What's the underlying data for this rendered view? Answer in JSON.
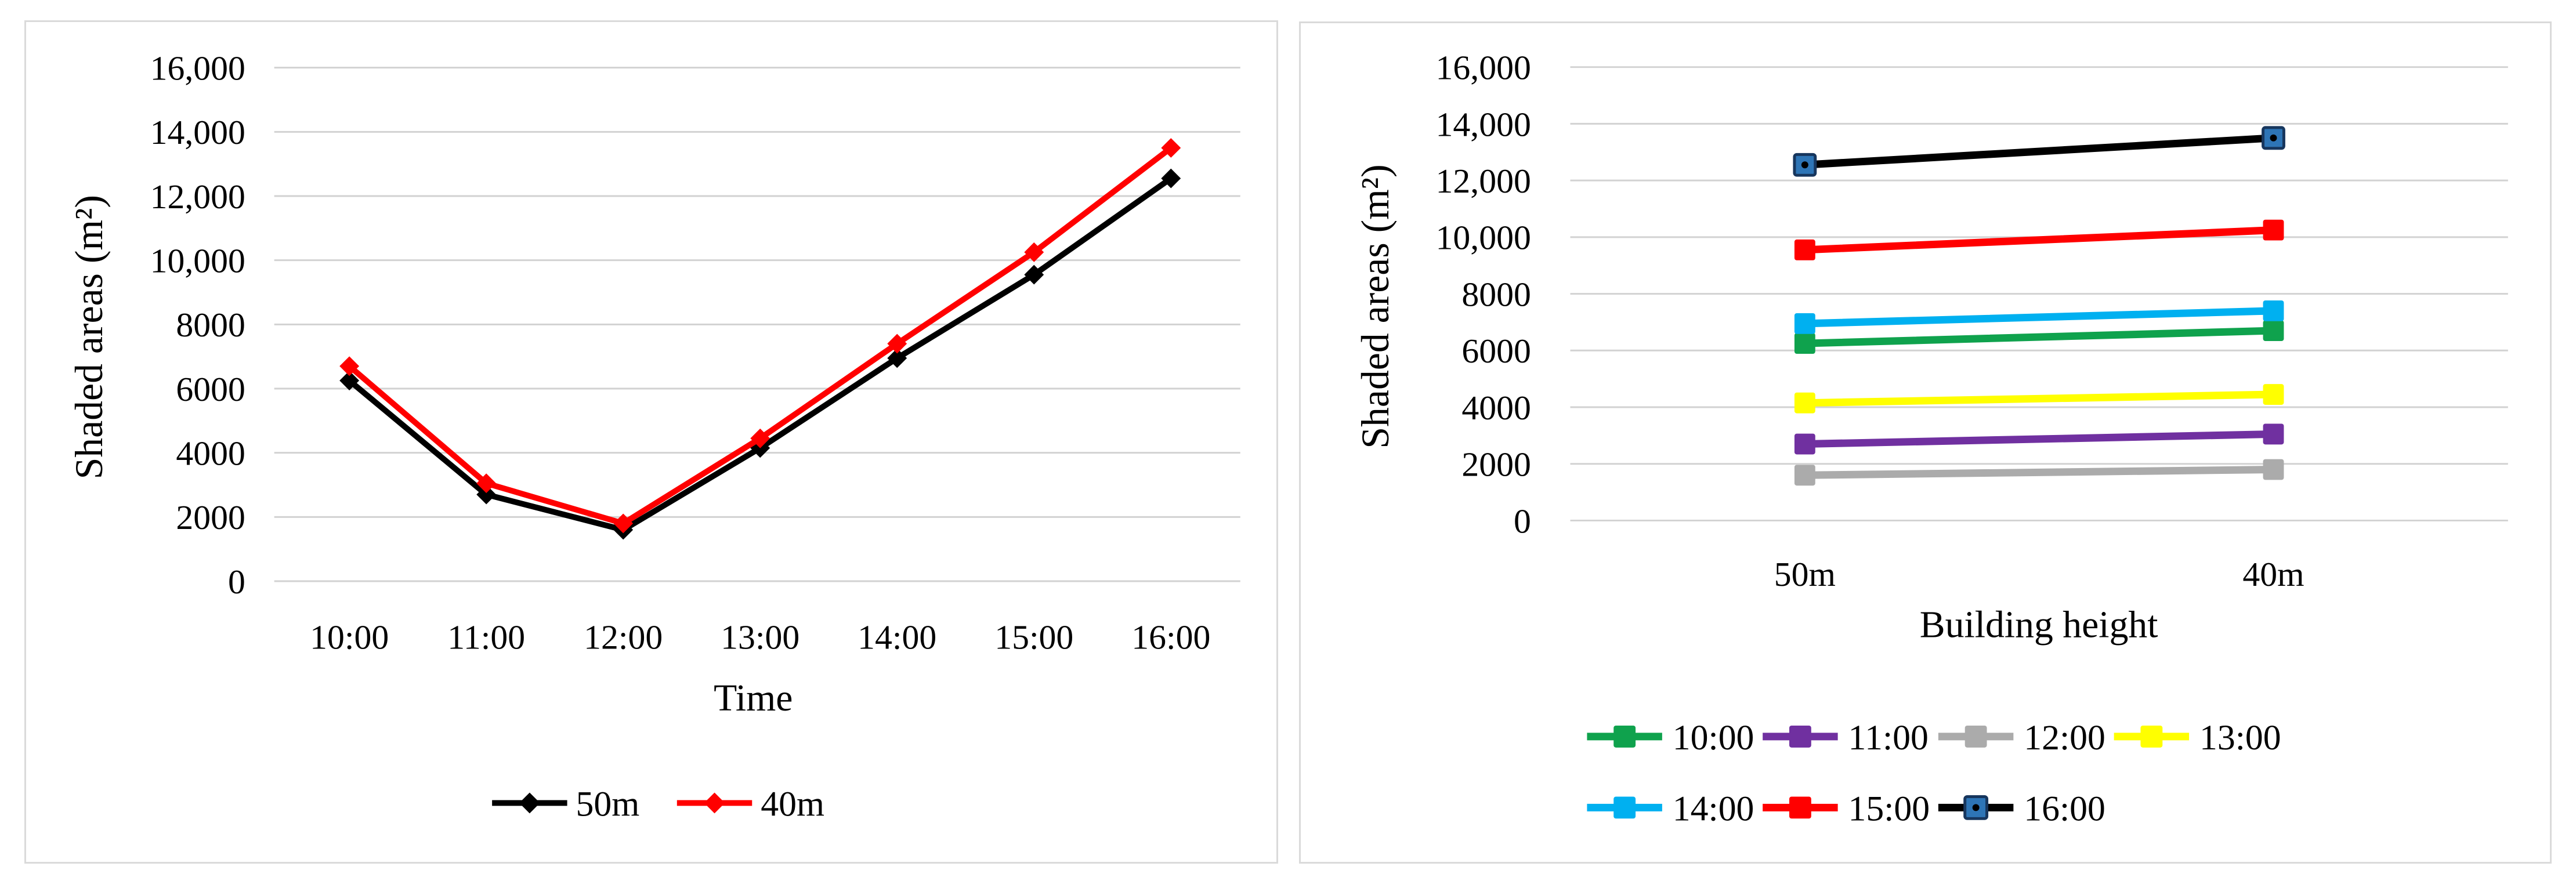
{
  "page": {
    "background": "#ffffff",
    "panel_border_color": "#dadada",
    "gridline_color": "#d2d2d2",
    "text_color": "#000000"
  },
  "chart_data": [
    {
      "type": "line",
      "title": "",
      "xlabel": "Time",
      "ylabel": "Shaded areas (m²)",
      "categories": [
        "10:00",
        "11:00",
        "12:00",
        "13:00",
        "14:00",
        "15:00",
        "16:00"
      ],
      "ylim": [
        0,
        16000
      ],
      "ytick_step": 2000,
      "ytick_labels_top_to_bottom": [
        "16,000",
        "14,000",
        "12,000",
        "10,000",
        "8000",
        "6000",
        "4000",
        "2000",
        "0"
      ],
      "grid": true,
      "legend_position": "bottom",
      "marker": "diamond",
      "series": [
        {
          "name": "50m",
          "color": "#000000",
          "values": [
            6250,
            2700,
            1600,
            4150,
            6950,
            9550,
            12550
          ]
        },
        {
          "name": "40m",
          "color": "#ff0000",
          "values": [
            6700,
            3050,
            1800,
            4450,
            7400,
            10250,
            13500
          ]
        }
      ],
      "legend_rows": [
        [
          "50m",
          "40m"
        ]
      ]
    },
    {
      "type": "line",
      "title": "",
      "xlabel": "Building height",
      "ylabel": "Shaded areas (m²)",
      "categories": [
        "50m",
        "40m"
      ],
      "ylim": [
        0,
        16000
      ],
      "ytick_step": 2000,
      "ytick_labels_top_to_bottom": [
        "16,000",
        "14,000",
        "12,000",
        "10,000",
        "8000",
        "6000",
        "4000",
        "2000",
        "0"
      ],
      "grid": true,
      "legend_position": "bottom",
      "marker": "square",
      "series": [
        {
          "name": "10:00",
          "color": "#0fa24d",
          "values": [
            6250,
            6700
          ]
        },
        {
          "name": "11:00",
          "color": "#7030a0",
          "values": [
            2700,
            3050
          ]
        },
        {
          "name": "12:00",
          "color": "#ababab",
          "values": [
            1600,
            1800
          ]
        },
        {
          "name": "13:00",
          "color": "#ffff00",
          "values": [
            4150,
            4450
          ]
        },
        {
          "name": "14:00",
          "color": "#00b0f0",
          "values": [
            6950,
            7400
          ]
        },
        {
          "name": "15:00",
          "color": "#ff0000",
          "values": [
            9550,
            10250
          ]
        },
        {
          "name": "16:00",
          "color": "#000000",
          "marker_color": "#2e75b6",
          "marker_stroke": "#17365d",
          "values": [
            12550,
            13500
          ]
        }
      ],
      "legend_rows": [
        [
          "10:00",
          "11:00",
          "12:00",
          "13:00"
        ],
        [
          "14:00",
          "15:00",
          "16:00"
        ]
      ]
    }
  ]
}
